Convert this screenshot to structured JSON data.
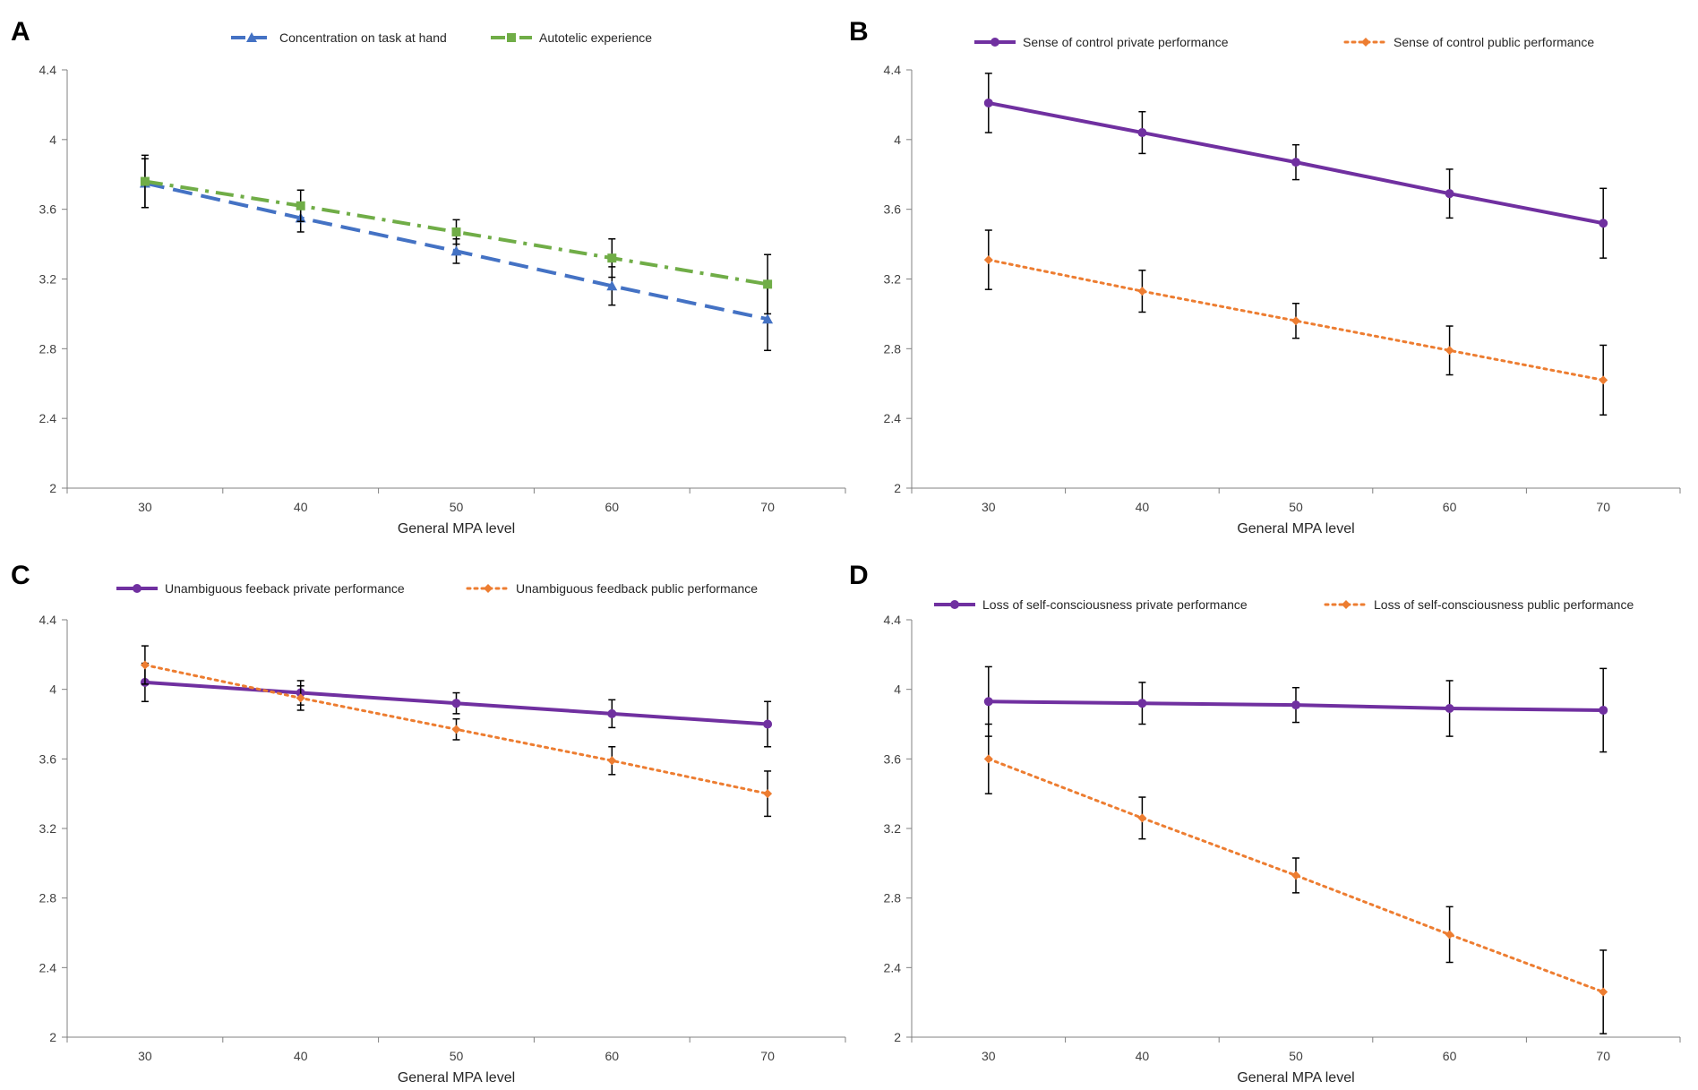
{
  "chart_data": [
    {
      "panel": "A",
      "type": "line",
      "xlabel": "General MPA level",
      "ylabel": "",
      "x": [
        30,
        40,
        50,
        60,
        70
      ],
      "xticks": [
        "30",
        "40",
        "50",
        "60",
        "70"
      ],
      "ylim": [
        2,
        4.4
      ],
      "yticks": [
        "2",
        "2.4",
        "2.8",
        "3.2",
        "3.6",
        "4",
        "4.4"
      ],
      "series": [
        {
          "name": "Concentration on task at hand",
          "color": "#4472C4",
          "dash": "longdash",
          "marker": "triangle",
          "values": [
            3.75,
            3.55,
            3.36,
            3.16,
            2.97
          ],
          "err": [
            0.14,
            0.08,
            0.07,
            0.11,
            0.18
          ]
        },
        {
          "name": "Autotelic experience",
          "color": "#70AD47",
          "dash": "dashdot",
          "marker": "square",
          "values": [
            3.76,
            3.62,
            3.47,
            3.32,
            3.17
          ],
          "err": [
            0.15,
            0.09,
            0.07,
            0.11,
            0.17
          ]
        }
      ]
    },
    {
      "panel": "B",
      "type": "line",
      "xlabel": "General MPA level",
      "ylabel": "",
      "x": [
        30,
        40,
        50,
        60,
        70
      ],
      "xticks": [
        "30",
        "40",
        "50",
        "60",
        "70"
      ],
      "ylim": [
        2,
        4.4
      ],
      "yticks": [
        "2",
        "2.4",
        "2.8",
        "3.2",
        "3.6",
        "4",
        "4.4"
      ],
      "series": [
        {
          "name": "Sense of control private performance",
          "color": "#7030A0",
          "dash": "solid",
          "marker": "circle",
          "values": [
            4.21,
            4.04,
            3.87,
            3.69,
            3.52
          ],
          "err": [
            0.17,
            0.12,
            0.1,
            0.14,
            0.2
          ]
        },
        {
          "name": "Sense of control public performance",
          "color": "#ED7D31",
          "dash": "dotted",
          "marker": "diamond",
          "values": [
            3.31,
            3.13,
            2.96,
            2.79,
            2.62
          ],
          "err": [
            0.17,
            0.12,
            0.1,
            0.14,
            0.2
          ]
        }
      ]
    },
    {
      "panel": "C",
      "type": "line",
      "xlabel": "General MPA level",
      "ylabel": "",
      "x": [
        30,
        40,
        50,
        60,
        70
      ],
      "xticks": [
        "30",
        "40",
        "50",
        "60",
        "70"
      ],
      "ylim": [
        2,
        4.4
      ],
      "yticks": [
        "2",
        "2.4",
        "2.8",
        "3.2",
        "3.6",
        "4",
        "4.4"
      ],
      "series": [
        {
          "name": "Unambiguous feeback private performance",
          "color": "#7030A0",
          "dash": "solid",
          "marker": "circle",
          "values": [
            4.04,
            3.98,
            3.92,
            3.86,
            3.8
          ],
          "err": [
            0.11,
            0.07,
            0.06,
            0.08,
            0.13
          ]
        },
        {
          "name": "Unambiguous feedback public performance",
          "color": "#ED7D31",
          "dash": "dotted",
          "marker": "diamond",
          "values": [
            4.14,
            3.95,
            3.77,
            3.59,
            3.4
          ],
          "err": [
            0.11,
            0.07,
            0.06,
            0.08,
            0.13
          ]
        }
      ]
    },
    {
      "panel": "D",
      "type": "line",
      "xlabel": "General MPA level",
      "ylabel": "",
      "x": [
        30,
        40,
        50,
        60,
        70
      ],
      "xticks": [
        "30",
        "40",
        "50",
        "60",
        "70"
      ],
      "ylim": [
        2,
        4.4
      ],
      "yticks": [
        "2",
        "2.4",
        "2.8",
        "3.2",
        "3.6",
        "4",
        "4.4"
      ],
      "series": [
        {
          "name": "Loss of self-consciousness private performance",
          "color": "#7030A0",
          "dash": "solid",
          "marker": "circle",
          "values": [
            3.93,
            3.92,
            3.91,
            3.89,
            3.88
          ],
          "err": [
            0.2,
            0.12,
            0.1,
            0.16,
            0.24
          ]
        },
        {
          "name": "Loss of self-consciousness public performance",
          "color": "#ED7D31",
          "dash": "dotted",
          "marker": "diamond",
          "values": [
            3.6,
            3.26,
            2.93,
            2.59,
            2.26
          ],
          "err": [
            0.2,
            0.12,
            0.1,
            0.16,
            0.24
          ]
        }
      ]
    }
  ]
}
